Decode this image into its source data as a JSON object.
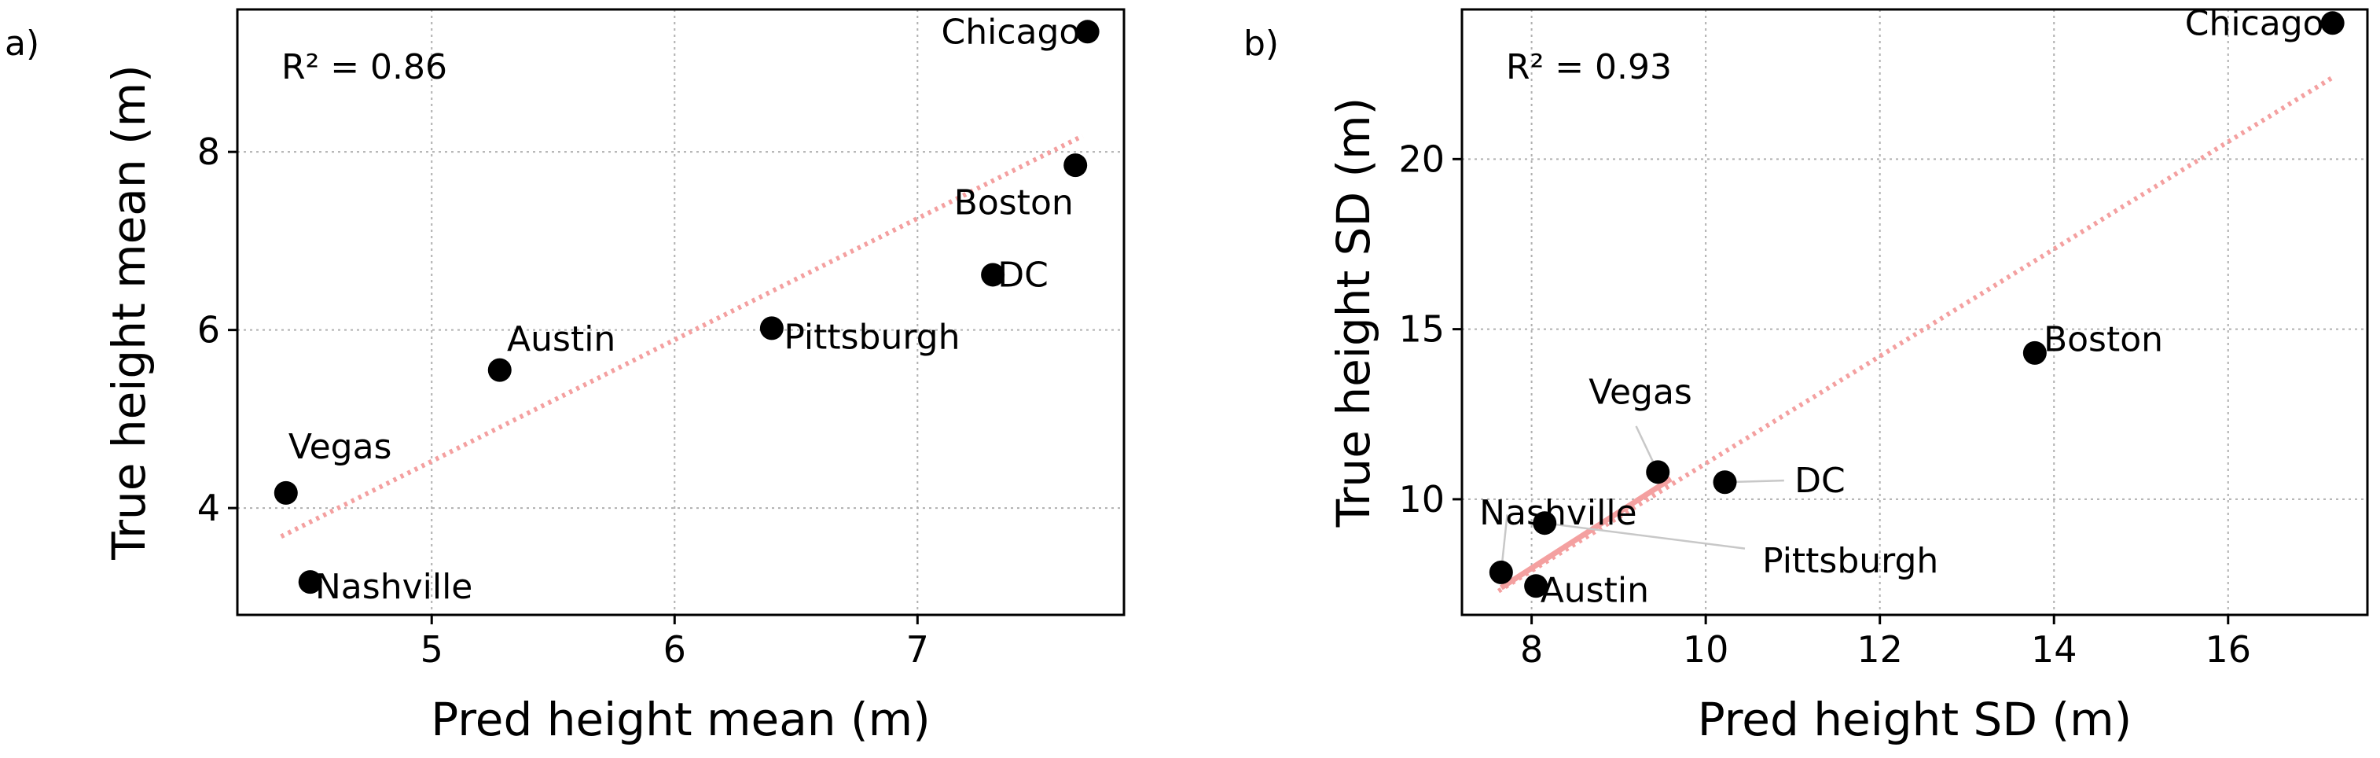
{
  "chart_data": [
    {
      "type": "scatter",
      "panel": "a)",
      "title": "",
      "xlabel": "Pred height mean (m)",
      "ylabel": "True height mean (m)",
      "xlim": [
        4.2,
        7.85
      ],
      "ylim": [
        2.8,
        9.6
      ],
      "xticks": [
        5,
        6,
        7
      ],
      "yticks": [
        4,
        6,
        8
      ],
      "xtick_labels": [
        "5",
        "6",
        "7"
      ],
      "ytick_labels": [
        "4",
        "6",
        "8"
      ],
      "grid": true,
      "annotation": "R² = 0.86",
      "fit_line": {
        "x": [
          4.38,
          7.68
        ],
        "y": [
          3.68,
          8.18
        ]
      },
      "points": [
        {
          "label": "Chicago",
          "x": 7.7,
          "y": 9.35,
          "label_anchor": "end",
          "label_dx": -0.03,
          "label_dy": 0.0
        },
        {
          "label": "Boston",
          "x": 7.65,
          "y": 7.85,
          "label_anchor": "start",
          "label_dx": -0.5,
          "label_dy": -0.42
        },
        {
          "label": "DC",
          "x": 7.31,
          "y": 6.62,
          "label_anchor": "start",
          "label_dx": 0.02,
          "label_dy": 0.0
        },
        {
          "label": "Pittsburgh",
          "x": 6.4,
          "y": 6.02,
          "label_anchor": "start",
          "label_dx": 0.05,
          "label_dy": -0.1
        },
        {
          "label": "Austin",
          "x": 5.28,
          "y": 5.55,
          "label_anchor": "start",
          "label_dx": 0.03,
          "label_dy": 0.35
        },
        {
          "label": "Vegas",
          "x": 4.4,
          "y": 4.17,
          "label_anchor": "start",
          "label_dx": 0.01,
          "label_dy": 0.52
        },
        {
          "label": "Nashville",
          "x": 4.5,
          "y": 3.17,
          "label_anchor": "start",
          "label_dx": 0.02,
          "label_dy": -0.05
        }
      ],
      "leaders": []
    },
    {
      "type": "scatter",
      "panel": "b)",
      "title": "",
      "xlabel": "Pred height SD (m)",
      "ylabel": "True height SD (m)",
      "xlim": [
        7.2,
        17.6
      ],
      "ylim": [
        6.6,
        24.4
      ],
      "xticks": [
        8,
        10,
        12,
        14,
        16
      ],
      "yticks": [
        10,
        15,
        20
      ],
      "xtick_labels": [
        "8",
        "10",
        "12",
        "14",
        "16"
      ],
      "ytick_labels": [
        "10",
        "15",
        "20"
      ],
      "grid": true,
      "annotation": "R² = 0.93",
      "fit_line": {
        "x": [
          7.62,
          17.2
        ],
        "y": [
          7.3,
          22.4
        ]
      },
      "fit_solid": {
        "x": [
          7.65,
          9.6
        ],
        "y": [
          7.4,
          10.6
        ]
      },
      "points": [
        {
          "label": "Chicago",
          "x": 17.2,
          "y": 24.0,
          "label_anchor": "end",
          "label_dx": -0.1,
          "label_dy": 0.0
        },
        {
          "label": "Boston",
          "x": 13.78,
          "y": 14.3,
          "label_anchor": "start",
          "label_dx": 0.1,
          "label_dy": 0.4
        },
        {
          "label": "DC",
          "x": 10.22,
          "y": 10.5,
          "label_anchor": "start",
          "label_dx": 0.8,
          "label_dy": 0.05
        },
        {
          "label": "Vegas",
          "x": 9.45,
          "y": 10.8,
          "label_anchor": "middle",
          "label_dx": -0.2,
          "label_dy": 2.35
        },
        {
          "label": "Nashville",
          "x": 8.15,
          "y": 9.3,
          "label_anchor": "start",
          "label_dx": -0.75,
          "label_dy": 0.3
        },
        {
          "label": "Pittsburgh",
          "x": 8.15,
          "y": 9.3,
          "label_anchor": "start",
          "label_dx": 2.5,
          "label_dy": -1.1
        },
        {
          "label": "Austin",
          "x": 8.05,
          "y": 7.45,
          "label_anchor": "start",
          "label_dx": 0.05,
          "label_dy": -0.12
        },
        {
          "label": "",
          "x": 7.65,
          "y": 7.85
        }
      ],
      "leaders": [
        {
          "x1": 8.15,
          "y1": 9.3,
          "x2": 10.45,
          "y2": 8.55
        },
        {
          "x1": 9.45,
          "y1": 10.8,
          "x2": 9.2,
          "y2": 12.15
        },
        {
          "x1": 10.22,
          "y1": 10.5,
          "x2": 10.9,
          "y2": 10.55
        },
        {
          "x1": 7.65,
          "y1": 7.85,
          "x2": 7.72,
          "y2": 9.55
        }
      ]
    }
  ]
}
